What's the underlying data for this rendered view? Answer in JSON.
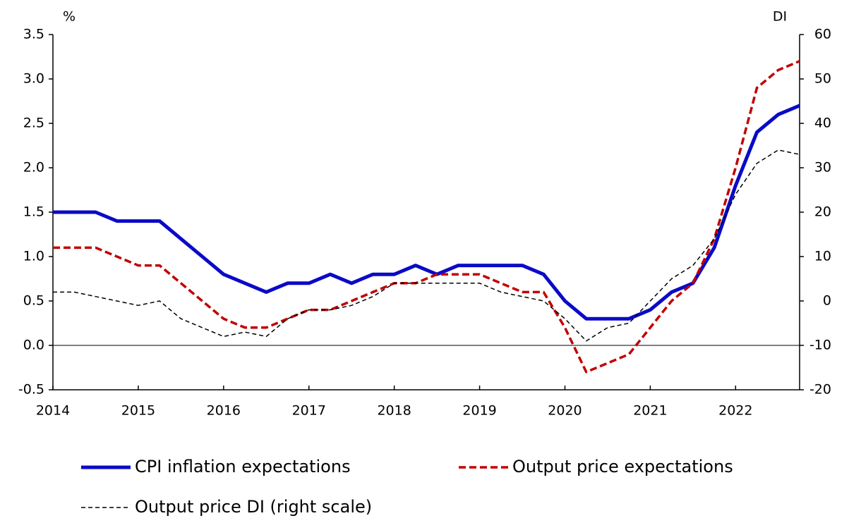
{
  "chart_data": {
    "type": "line",
    "y_label": "%",
    "y2_label": "DI",
    "x": [
      2014,
      2014.25,
      2014.5,
      2014.75,
      2015,
      2015.25,
      2015.5,
      2015.75,
      2016,
      2016.25,
      2016.5,
      2016.75,
      2017,
      2017.25,
      2017.5,
      2017.75,
      2018,
      2018.25,
      2018.5,
      2018.75,
      2019,
      2019.25,
      2019.5,
      2019.75,
      2020,
      2020.25,
      2020.5,
      2020.75,
      2021,
      2021.25,
      2021.5,
      2021.75,
      2022,
      2022.25,
      2022.5,
      2022.75
    ],
    "xlim": [
      2014,
      2022.75
    ],
    "xticks": [
      2014,
      2015,
      2016,
      2017,
      2018,
      2019,
      2020,
      2021,
      2022
    ],
    "ylim": [
      -0.5,
      3.5
    ],
    "yticks": [
      {
        "value": -0.5,
        "label": "-0.5"
      },
      {
        "value": 0,
        "label": "0.0"
      },
      {
        "value": 0.5,
        "label": "0.5"
      },
      {
        "value": 1,
        "label": "1.0"
      },
      {
        "value": 1.5,
        "label": "1.5"
      },
      {
        "value": 2,
        "label": "2.0"
      },
      {
        "value": 2.5,
        "label": "2.5"
      },
      {
        "value": 3,
        "label": "3.0"
      },
      {
        "value": 3.5,
        "label": "3.5"
      }
    ],
    "y2lim": [
      -20,
      60
    ],
    "y2ticks": [
      -20,
      -10,
      0,
      10,
      20,
      30,
      40,
      50,
      60
    ],
    "series": [
      {
        "name": "CPI inflation expectations",
        "color": "#0a0ac8",
        "line_style": "solid",
        "values": [
          1.5,
          1.5,
          1.5,
          1.4,
          1.4,
          1.4,
          1.2,
          1.0,
          0.8,
          0.7,
          0.6,
          0.7,
          0.7,
          0.8,
          0.7,
          0.8,
          0.8,
          0.9,
          0.8,
          0.9,
          0.9,
          0.9,
          0.9,
          0.8,
          0.5,
          0.3,
          0.3,
          0.3,
          0.4,
          0.6,
          0.7,
          1.1,
          1.8,
          2.4,
          2.6,
          2.7
        ]
      },
      {
        "name": "Output price expectations",
        "color": "#c00000",
        "line_style": "dashed",
        "values": [
          1.1,
          1.1,
          1.1,
          1.0,
          0.9,
          0.9,
          0.7,
          0.5,
          0.3,
          0.2,
          0.2,
          0.3,
          0.4,
          0.4,
          0.5,
          0.6,
          0.7,
          0.7,
          0.8,
          0.8,
          0.8,
          0.7,
          0.6,
          0.6,
          0.2,
          -0.3,
          -0.2,
          -0.1,
          0.2,
          0.5,
          0.7,
          1.2,
          2.0,
          2.9,
          3.1,
          3.2
        ]
      },
      {
        "name": "Output price DI (right scale)",
        "color": "#000000",
        "line_style": "dashed",
        "axis": "y2",
        "values": [
          2,
          2,
          1,
          0,
          -1,
          0,
          -4,
          -6,
          -8,
          -7,
          -8,
          -4,
          -2,
          -2,
          -1,
          1,
          4,
          4,
          4,
          4,
          4,
          2,
          1,
          0,
          -4,
          -9,
          -6,
          -5,
          0,
          5,
          8,
          14,
          24,
          31,
          34,
          33
        ]
      }
    ]
  }
}
